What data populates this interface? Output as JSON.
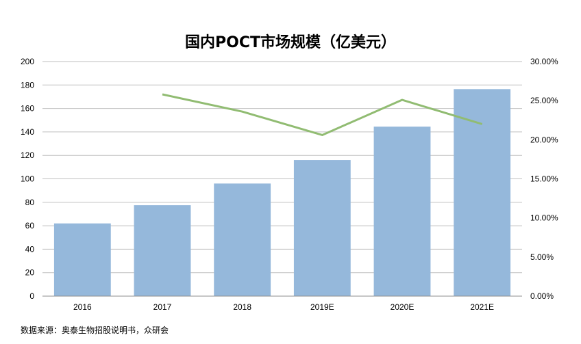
{
  "title": "国内POCT市场规模（亿美元）",
  "source": "数据来源：奥泰生物招股说明书，众研会",
  "chart_data": {
    "type": "bar",
    "title": "国内POCT市场规模（亿美元）",
    "categories": [
      "2016",
      "2017",
      "2018",
      "2019E",
      "2020E",
      "2021E"
    ],
    "series": [
      {
        "type": "bar",
        "axis": "left",
        "values": [
          62,
          77.5,
          96,
          116,
          144.5,
          176.5
        ],
        "color": "#95B8DB"
      },
      {
        "type": "line",
        "axis": "right",
        "values": [
          null,
          0.258,
          0.236,
          0.206,
          0.251,
          0.22
        ],
        "color": "#91BC72"
      }
    ],
    "y_left": {
      "min": 0,
      "max": 200,
      "step": 20,
      "ticks": [
        "0",
        "20",
        "40",
        "60",
        "80",
        "100",
        "120",
        "140",
        "160",
        "180",
        "200"
      ]
    },
    "y_right": {
      "min": 0,
      "max": 0.3,
      "step": 0.05,
      "ticks": [
        "0.00%",
        "5.00%",
        "10.00%",
        "15.00%",
        "20.00%",
        "25.00%",
        "30.00%"
      ]
    },
    "grid": true,
    "legend": "none"
  }
}
